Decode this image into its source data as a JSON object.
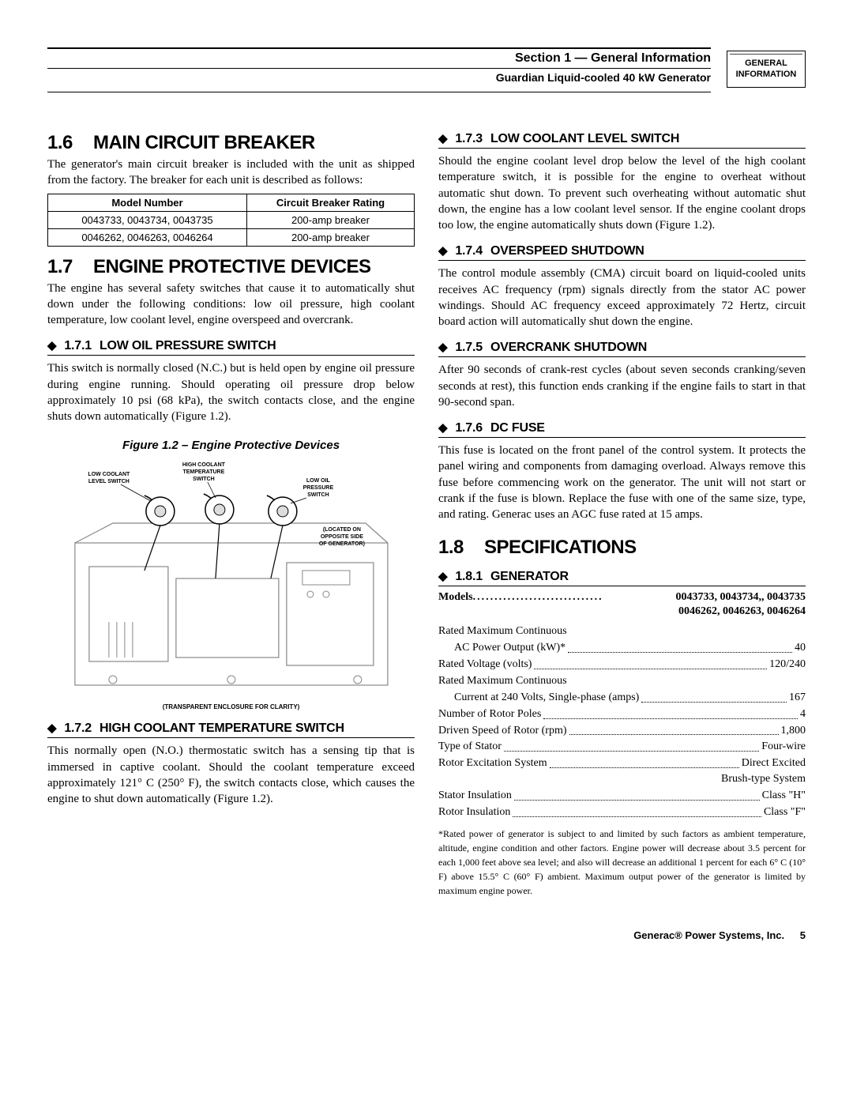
{
  "header": {
    "section_line": "Section 1 — General Information",
    "product_line": "Guardian Liquid-cooled 40 kW Generator",
    "tab_line1": "GENERAL",
    "tab_line2": "INFORMATION"
  },
  "section_16": {
    "num": "1.6",
    "title": "MAIN CIRCUIT BREAKER",
    "intro": "The generator's main circuit breaker is included with the unit as shipped from the factory. The breaker for each unit is described as follows:",
    "table": {
      "headers": [
        "Model Number",
        "Circuit Breaker Rating"
      ],
      "rows": [
        [
          "0043733, 0043734, 0043735",
          "200-amp breaker"
        ],
        [
          "0046262, 0046263, 0046264",
          "200-amp breaker"
        ]
      ]
    }
  },
  "section_17": {
    "num": "1.7",
    "title": "ENGINE PROTECTIVE DEVICES",
    "intro": "The engine has several safety switches that cause it to automatically shut down under the following conditions: low oil pressure, high coolant temperature, low coolant level, engine overspeed and overcrank.",
    "s1": {
      "num": "1.7.1",
      "title": "LOW OIL PRESSURE SWITCH",
      "body": "This switch is normally closed (N.C.) but is held open by engine oil pressure during engine running. Should operating oil pressure drop below approximately 10 psi (68 kPa), the switch contacts close, and the engine shuts down automatically (Figure 1.2)."
    },
    "figure": {
      "caption": "Figure 1.2 – Engine Protective Devices",
      "label_low_cool": "LOW COOLANT LEVEL SWITCH",
      "label_high_cool": "HIGH COOLANT TEMPERATURE SWITCH",
      "label_low_oil": "LOW OIL PRESSURE SWITCH",
      "label_located": "(LOCATED ON OPPOSITE SIDE OF GENERATOR)",
      "note": "(TRANSPARENT ENCLOSURE FOR CLARITY)"
    },
    "s2": {
      "num": "1.7.2",
      "title": "HIGH COOLANT TEMPERATURE SWITCH",
      "body": "This normally open (N.O.) thermostatic switch has a sensing tip that is immersed in captive coolant. Should the coolant temperature exceed approximately 121° C (250° F), the switch contacts close, which causes the engine to shut down automatically (Figure 1.2)."
    },
    "s3": {
      "num": "1.7.3",
      "title": "LOW COOLANT LEVEL SWITCH",
      "body": "Should the engine coolant level drop below the level of the high coolant temperature switch, it is possible for the engine to overheat without automatic shut down. To prevent such overheating without automatic shut down, the engine has a low coolant level sensor. If the engine coolant drops too low, the engine automatically shuts down (Figure 1.2)."
    },
    "s4": {
      "num": "1.7.4",
      "title": "OVERSPEED SHUTDOWN",
      "body": "The control module assembly (CMA) circuit board on liquid-cooled units receives AC frequency (rpm) signals directly from the stator AC power windings. Should AC frequency exceed approximately 72 Hertz, circuit board action will automatically shut down the engine."
    },
    "s5": {
      "num": "1.7.5",
      "title": "OVERCRANK SHUTDOWN",
      "body": "After 90 seconds of crank-rest cycles (about seven seconds cranking/seven seconds at rest), this function ends cranking if the engine fails to start in that 90-second span."
    },
    "s6": {
      "num": "1.7.6",
      "title": "DC FUSE",
      "body": "This fuse is located on the front panel of the control system. It protects the panel wiring and components from damaging overload. Always remove this fuse before commencing work on the generator. The unit will not start or crank if the fuse is blown. Replace the fuse with one of the same size, type, and rating. Generac uses an AGC fuse rated at 15 amps."
    }
  },
  "section_18": {
    "num": "1.8",
    "title": "SPECIFICATIONS",
    "s1": {
      "num": "1.8.1",
      "title": "GENERATOR"
    },
    "models_label": "Models",
    "models_val1": "0043733, 0043734,, 0043735",
    "models_val2": "0046262, 0046263, 0046264",
    "specs": [
      {
        "label": "Rated Maximum Continuous",
        "val": ""
      },
      {
        "label": "AC Power Output (kW)*",
        "val": "40",
        "indent": true
      },
      {
        "label": "Rated Voltage (volts)",
        "val": "120/240"
      },
      {
        "label": "Rated Maximum Continuous",
        "val": ""
      },
      {
        "label": "Current at 240 Volts, Single-phase (amps)",
        "val": "167",
        "indent": true
      },
      {
        "label": "Number of Rotor Poles",
        "val": "4"
      },
      {
        "label": "Driven Speed of Rotor (rpm)",
        "val": "1,800"
      },
      {
        "label": "Type of Stator",
        "val": "Four-wire"
      },
      {
        "label": "Rotor Excitation System",
        "val": "Direct Excited"
      },
      {
        "label": "",
        "val": "Brush-type System",
        "right": true
      },
      {
        "label": "Stator Insulation",
        "val": "Class \"H\""
      },
      {
        "label": "Rotor Insulation",
        "val": "Class \"F\""
      }
    ],
    "footnote": "*Rated power of generator is subject to and limited by such factors as ambient temperature, altitude, engine condition and other factors. Engine power will decrease about 3.5 percent for each 1,000 feet above sea level; and also will decrease an additional 1 percent for each 6° C (10° F) above 15.5° C (60° F) ambient. Maximum output power of the generator is limited by maximum engine power."
  },
  "footer": {
    "company": "Generac® Power Systems, Inc.",
    "page": "5"
  }
}
